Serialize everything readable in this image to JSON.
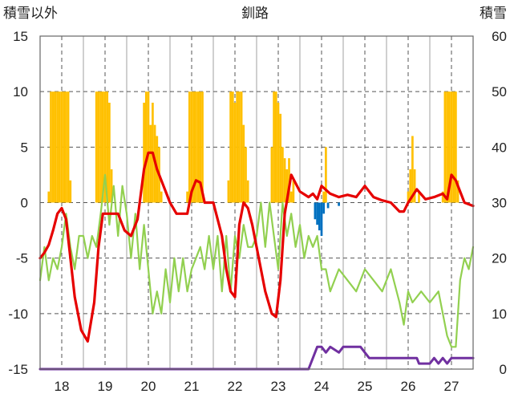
{
  "chart_data": {
    "type": "line",
    "title": "釧路",
    "y_left_label": "積雪以外",
    "y_right_label": "積雪",
    "x_ticks": [
      "18",
      "19",
      "20",
      "21",
      "22",
      "23",
      "24",
      "25",
      "26",
      "27"
    ],
    "x_range": [
      17.5,
      27.5
    ],
    "y_left_ticks": [
      "15",
      "10",
      "5",
      "0",
      "-5",
      "-10",
      "-15"
    ],
    "y_left_range": [
      -15,
      15
    ],
    "y_right_ticks": [
      "60",
      "50",
      "40",
      "30",
      "20",
      "10",
      "0"
    ],
    "y_right_range": [
      0,
      60
    ],
    "grid": true,
    "colors": {
      "red": "#e60000",
      "green": "#92d050",
      "purple": "#7030a0",
      "orange_bars": "#ffc000",
      "blue_bars": "#0070c0",
      "grid": "#555555",
      "frame": "#666666"
    },
    "series": [
      {
        "color": "red",
        "axis": "left",
        "x": [
          17.5,
          17.6,
          17.7,
          17.8,
          17.9,
          18.0,
          18.1,
          18.2,
          18.3,
          18.45,
          18.6,
          18.75,
          18.85,
          18.95,
          19.05,
          19.15,
          19.3,
          19.45,
          19.6,
          19.75,
          19.9,
          20.0,
          20.1,
          20.2,
          20.35,
          20.5,
          20.65,
          20.8,
          20.9,
          21.0,
          21.1,
          21.2,
          21.3,
          21.5,
          21.6,
          21.7,
          21.8,
          21.9,
          22.0,
          22.1,
          22.2,
          22.3,
          22.4,
          22.55,
          22.7,
          22.85,
          22.95,
          23.05,
          23.15,
          23.3,
          23.5,
          23.7,
          23.8,
          23.9,
          24.0,
          24.2,
          24.4,
          24.6,
          24.8,
          25.0,
          25.2,
          25.4,
          25.6,
          25.8,
          25.9,
          26.0,
          26.2,
          26.4,
          26.6,
          26.8,
          26.9,
          27.0,
          27.1,
          27.3,
          27.5
        ],
        "y": [
          -5,
          -4.5,
          -3.8,
          -2.5,
          -1,
          -0.5,
          -1.5,
          -5,
          -8.5,
          -11.5,
          -12.5,
          -9,
          -4,
          -1,
          -1,
          -1,
          -1,
          -2.5,
          -3,
          -1.5,
          3,
          4.5,
          4.5,
          3,
          1.5,
          0,
          -1,
          -1,
          -1,
          1,
          2,
          1.8,
          0,
          0,
          -1.5,
          -3,
          -6,
          -8,
          -8.5,
          -2,
          0,
          -0.5,
          -2,
          -5,
          -8,
          -10,
          -10.3,
          -7,
          -1,
          2.5,
          1,
          0.5,
          0.8,
          0.3,
          1.5,
          0.8,
          0.5,
          0.7,
          0.5,
          1.5,
          0.5,
          0.2,
          0,
          -0.8,
          -0.8,
          0,
          1.2,
          0.3,
          0.5,
          0.8,
          0.3,
          2.5,
          2,
          0,
          -0.3
        ]
      },
      {
        "color": "green",
        "axis": "left",
        "x": [
          17.5,
          17.6,
          17.7,
          17.8,
          17.9,
          18.0,
          18.1,
          18.2,
          18.3,
          18.4,
          18.5,
          18.6,
          18.7,
          18.8,
          18.9,
          19.0,
          19.1,
          19.2,
          19.3,
          19.4,
          19.5,
          19.6,
          19.7,
          19.8,
          19.9,
          20.0,
          20.1,
          20.2,
          20.3,
          20.4,
          20.5,
          20.6,
          20.7,
          20.8,
          20.9,
          21.0,
          21.1,
          21.2,
          21.3,
          21.4,
          21.5,
          21.6,
          21.7,
          21.8,
          21.9,
          22.0,
          22.1,
          22.2,
          22.3,
          22.4,
          22.5,
          22.6,
          22.7,
          22.8,
          22.9,
          23.0,
          23.1,
          23.2,
          23.3,
          23.4,
          23.5,
          23.6,
          23.7,
          23.8,
          23.9,
          24.0,
          24.1,
          24.2,
          24.4,
          24.6,
          24.8,
          25.0,
          25.2,
          25.4,
          25.6,
          25.8,
          25.9,
          26.0,
          26.1,
          26.3,
          26.5,
          26.7,
          26.8,
          26.9,
          27.0,
          27.1,
          27.2,
          27.3,
          27.4,
          27.5
        ],
        "y": [
          -7,
          -4,
          -7,
          -5,
          -6,
          -4,
          -1,
          -4,
          -6,
          -3,
          -3,
          -5,
          -3,
          -4,
          -1,
          2.5,
          -2,
          1.5,
          -3,
          1.5,
          -1,
          -5,
          -1,
          -6,
          -2,
          -6,
          -10,
          -8,
          -10,
          -6,
          -9,
          -5,
          -8,
          -5,
          -8,
          -6,
          -5,
          -4,
          -6,
          -3,
          -6,
          -3,
          -8,
          -3,
          -8,
          -3,
          -5,
          -2,
          -4,
          -4,
          -3,
          0,
          -4,
          0,
          -3,
          -6,
          0,
          -3,
          -1,
          -4,
          -2,
          -5,
          -3,
          -4,
          -3,
          -6,
          -6,
          -8,
          -6,
          -7,
          -8,
          -6,
          -7,
          -8,
          -6,
          -9,
          -11,
          -8,
          -9,
          -8,
          -9,
          -8,
          -10,
          -12,
          -13,
          -13,
          -7,
          -5,
          -6,
          -4
        ]
      },
      {
        "color": "purple",
        "axis": "right",
        "x": [
          17.5,
          23.7,
          23.8,
          23.9,
          24.0,
          24.1,
          24.2,
          24.4,
          24.5,
          24.6,
          24.9,
          25.0,
          25.1,
          26.2,
          26.25,
          26.5,
          26.6,
          26.7,
          26.8,
          26.9,
          27.0,
          27.5
        ],
        "y": [
          0,
          0,
          2,
          4,
          4,
          3,
          4,
          3,
          4,
          4,
          4,
          3,
          2,
          2,
          1,
          1,
          2,
          1,
          2,
          1,
          2,
          2
        ]
      }
    ],
    "snow_bars_orange": {
      "axis": "right",
      "x": [
        17.7,
        17.75,
        17.8,
        17.85,
        17.9,
        17.95,
        18.0,
        18.05,
        18.1,
        18.15,
        18.2,
        18.8,
        18.85,
        18.9,
        18.95,
        19.0,
        19.05,
        19.1,
        19.15,
        19.9,
        19.95,
        20.0,
        20.05,
        20.1,
        20.15,
        20.2,
        20.25,
        20.3,
        20.9,
        20.95,
        21.0,
        21.05,
        21.1,
        21.15,
        21.2,
        21.25,
        21.3,
        21.85,
        21.9,
        21.95,
        22.0,
        22.05,
        22.1,
        22.15,
        22.2,
        22.25,
        22.3,
        22.85,
        22.9,
        22.95,
        23.0,
        23.05,
        23.1,
        23.15,
        23.2,
        23.25,
        23.3,
        23.35,
        23.4,
        24.05,
        24.1,
        26.0,
        26.05,
        26.1,
        26.15,
        26.25,
        26.8,
        26.85,
        26.9,
        26.95,
        27.0,
        27.05,
        27.1,
        27.15
      ],
      "y": [
        32,
        50,
        50,
        50,
        50,
        50,
        50,
        50,
        50,
        50,
        34,
        50,
        50,
        50,
        50,
        50,
        50,
        48,
        36,
        48,
        50,
        50,
        44,
        48,
        44,
        42,
        40,
        32,
        32,
        50,
        50,
        50,
        50,
        50,
        50,
        50,
        30,
        34,
        50,
        50,
        48,
        50,
        50,
        50,
        44,
        40,
        34,
        40,
        50,
        50,
        48,
        46,
        40,
        38,
        36,
        38,
        32,
        34,
        30,
        32,
        40,
        32,
        36,
        42,
        36,
        32,
        32,
        50,
        50,
        50,
        50,
        50,
        50,
        34
      ]
    },
    "neg_bars_blue": {
      "axis": "left",
      "x": [
        23.85,
        23.9,
        23.95,
        24.0,
        24.05,
        24.15,
        24.4
      ],
      "y": [
        -1.5,
        -2,
        -2.5,
        -3,
        -1,
        -0.5,
        -0.3
      ]
    }
  }
}
